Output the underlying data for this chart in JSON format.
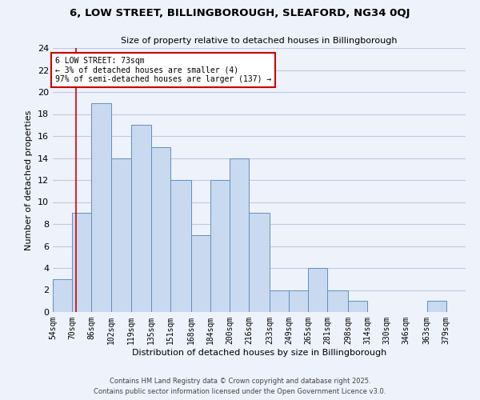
{
  "title": "6, LOW STREET, BILLINGBOROUGH, SLEAFORD, NG34 0QJ",
  "subtitle": "Size of property relative to detached houses in Billingborough",
  "xlabel": "Distribution of detached houses by size in Billingborough",
  "ylabel": "Number of detached properties",
  "bar_left_edges": [
    54,
    70,
    86,
    102,
    119,
    135,
    151,
    168,
    184,
    200,
    216,
    233,
    249,
    265,
    281,
    298,
    314,
    330,
    346,
    363
  ],
  "bar_heights": [
    3,
    9,
    19,
    14,
    17,
    15,
    12,
    7,
    12,
    14,
    9,
    2,
    2,
    4,
    2,
    1,
    0,
    0,
    0,
    1
  ],
  "bar_widths": [
    16,
    16,
    16,
    17,
    16,
    16,
    17,
    16,
    16,
    16,
    17,
    16,
    16,
    16,
    17,
    16,
    16,
    16,
    17,
    16
  ],
  "x_tick_labels": [
    "54sqm",
    "70sqm",
    "86sqm",
    "102sqm",
    "119sqm",
    "135sqm",
    "151sqm",
    "168sqm",
    "184sqm",
    "200sqm",
    "216sqm",
    "233sqm",
    "249sqm",
    "265sqm",
    "281sqm",
    "298sqm",
    "314sqm",
    "330sqm",
    "346sqm",
    "363sqm",
    "379sqm"
  ],
  "x_tick_positions": [
    54,
    70,
    86,
    102,
    119,
    135,
    151,
    168,
    184,
    200,
    216,
    233,
    249,
    265,
    281,
    298,
    314,
    330,
    346,
    363,
    379
  ],
  "ylim": [
    0,
    24
  ],
  "yticks": [
    0,
    2,
    4,
    6,
    8,
    10,
    12,
    14,
    16,
    18,
    20,
    22,
    24
  ],
  "bar_color": "#c9d9f0",
  "bar_edge_color": "#6090c0",
  "grid_color": "#c0cce0",
  "background_color": "#eef2fb",
  "marker_x": 73,
  "marker_line_color": "#cc0000",
  "annotation_text": "6 LOW STREET: 73sqm\n← 3% of detached houses are smaller (4)\n97% of semi-detached houses are larger (137) →",
  "annotation_box_color": "#ffffff",
  "annotation_box_edge": "#cc0000",
  "footer1": "Contains HM Land Registry data © Crown copyright and database right 2025.",
  "footer2": "Contains public sector information licensed under the Open Government Licence v3.0."
}
